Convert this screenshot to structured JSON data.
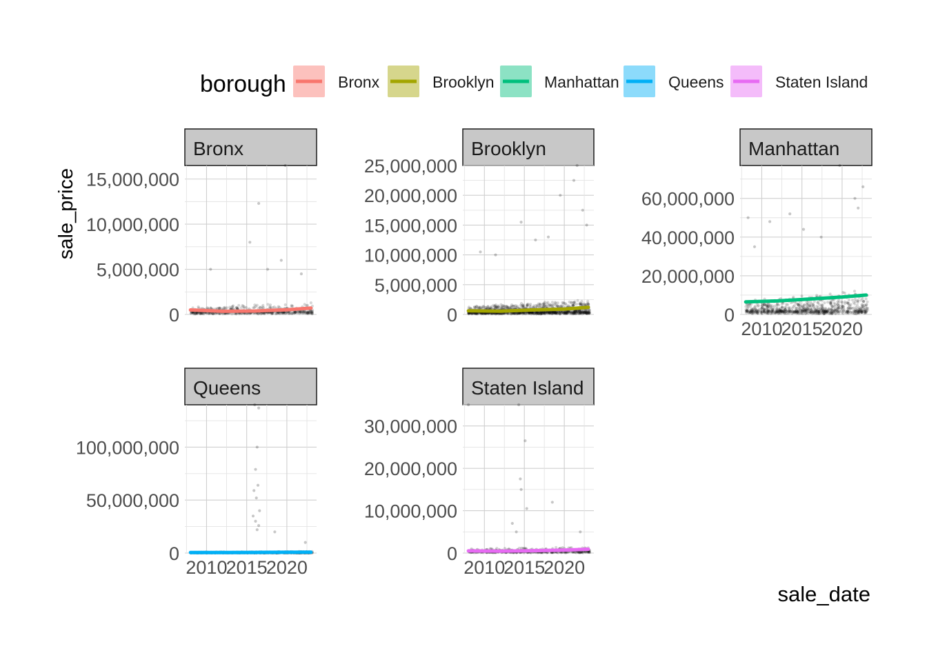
{
  "legend": {
    "title": "borough",
    "items": [
      {
        "label": "Bronx",
        "color": "#F8766D"
      },
      {
        "label": "Brooklyn",
        "color": "#A3A500"
      },
      {
        "label": "Manhattan",
        "color": "#00BF7D"
      },
      {
        "label": "Queens",
        "color": "#00B0F6"
      },
      {
        "label": "Staten Island",
        "color": "#E76BF3"
      }
    ]
  },
  "chart_data": {
    "type": "scatter",
    "xlabel": "sale_date",
    "ylabel": "sale_price",
    "x_ticks": [
      "2010",
      "2015",
      "2020"
    ],
    "x_tick_years": [
      2010,
      2015,
      2020
    ],
    "xlim": [
      2007.3,
      2023.7
    ],
    "grid": true,
    "legend_position": "top",
    "point_color": "#000000",
    "panels": [
      {
        "name": "Bronx",
        "color": "#F8766D",
        "ylim": [
          0,
          16500000
        ],
        "y_ticks": [
          0,
          5000000,
          10000000,
          15000000
        ],
        "y_tick_labels": [
          "0",
          "5,000,000",
          "10,000,000",
          "15,000,000"
        ],
        "smooth_x": [
          2008,
          2012,
          2016,
          2020,
          2023
        ],
        "smooth_y": [
          500000,
          350000,
          380000,
          520000,
          700000
        ],
        "outliers": [
          [
            2019.8,
            17000000
          ],
          [
            2016.5,
            12300000
          ],
          [
            2015.4,
            8000000
          ],
          [
            2017.6,
            5000000
          ],
          [
            2010.5,
            5000000
          ],
          [
            2019.3,
            6000000
          ],
          [
            2021.8,
            4500000
          ]
        ],
        "cloud": {
          "base": 150000,
          "scale": 900000,
          "count": 550
        }
      },
      {
        "name": "Brooklyn",
        "color": "#A3A500",
        "ylim": [
          0,
          25000000
        ],
        "y_ticks": [
          0,
          5000000,
          10000000,
          15000000,
          20000000,
          25000000
        ],
        "y_tick_labels": [
          "0",
          "5,000,000",
          "10,000,000",
          "15,000,000",
          "20,000,000",
          "25,000,000"
        ],
        "smooth_x": [
          2008,
          2012,
          2016,
          2020,
          2023
        ],
        "smooth_y": [
          600000,
          550000,
          750000,
          900000,
          1200000
        ],
        "outliers": [
          [
            2021.6,
            26000000
          ],
          [
            2021.2,
            22500000
          ],
          [
            2019.5,
            20000000
          ],
          [
            2022.3,
            17500000
          ],
          [
            2014.6,
            15500000
          ],
          [
            2018.0,
            13000000
          ],
          [
            2016.4,
            12500000
          ],
          [
            2022.8,
            15000000
          ],
          [
            2011.4,
            10000000
          ],
          [
            2009.5,
            10500000
          ]
        ],
        "cloud": {
          "base": 200000,
          "scale": 1800000,
          "count": 1100
        }
      },
      {
        "name": "Manhattan",
        "color": "#00BF7D",
        "ylim": [
          0,
          77000000
        ],
        "y_ticks": [
          0,
          20000000,
          40000000,
          60000000
        ],
        "y_tick_labels": [
          "0",
          "20,000,000",
          "40,000,000",
          "60,000,000"
        ],
        "smooth_x": [
          2008,
          2012,
          2016,
          2020,
          2023
        ],
        "smooth_y": [
          6500000,
          7000000,
          8000000,
          9000000,
          10000000
        ],
        "outliers": [
          [
            2019.7,
            78000000
          ],
          [
            2022.6,
            66000000
          ],
          [
            2021.6,
            60000000
          ],
          [
            2022.0,
            55000000
          ],
          [
            2013.5,
            52000000
          ],
          [
            2008.3,
            50000000
          ],
          [
            2011.0,
            48000000
          ],
          [
            2015.2,
            44000000
          ],
          [
            2017.4,
            40000000
          ],
          [
            2009.1,
            35000000
          ]
        ],
        "cloud": {
          "base": 1000000,
          "scale": 9000000,
          "count": 750
        }
      },
      {
        "name": "Queens",
        "color": "#00B0F6",
        "ylim": [
          0,
          140000000
        ],
        "y_ticks": [
          0,
          50000000,
          100000000
        ],
        "y_tick_labels": [
          "0",
          "50,000,000",
          "100,000,000"
        ],
        "smooth_x": [
          2008,
          2012,
          2016,
          2020,
          2023
        ],
        "smooth_y": [
          500000,
          500000,
          600000,
          700000,
          800000
        ],
        "outliers": [
          [
            2016.0,
            140000000
          ],
          [
            2016.5,
            137000000
          ],
          [
            2016.3,
            100000000
          ],
          [
            2016.1,
            79000000
          ],
          [
            2016.4,
            64000000
          ],
          [
            2015.9,
            59000000
          ],
          [
            2016.2,
            52000000
          ],
          [
            2016.6,
            40000000
          ],
          [
            2015.8,
            35000000
          ],
          [
            2016.1,
            30000000
          ],
          [
            2016.5,
            26000000
          ],
          [
            2016.3,
            22000000
          ],
          [
            2018.5,
            20000000
          ],
          [
            2022.3,
            10000000
          ]
        ],
        "cloud": {
          "base": 100000,
          "scale": 1200000,
          "count": 650
        }
      },
      {
        "name": "Staten Island",
        "color": "#E76BF3",
        "ylim": [
          0,
          35000000
        ],
        "y_ticks": [
          0,
          10000000,
          20000000,
          30000000
        ],
        "y_tick_labels": [
          "0",
          "10,000,000",
          "20,000,000",
          "30,000,000"
        ],
        "smooth_x": [
          2008,
          2012,
          2016,
          2020,
          2023
        ],
        "smooth_y": [
          500000,
          450000,
          550000,
          700000,
          900000
        ],
        "outliers": [
          [
            2008.0,
            35500000
          ],
          [
            2014.3,
            35000000
          ],
          [
            2015.1,
            26500000
          ],
          [
            2014.5,
            17500000
          ],
          [
            2014.6,
            15000000
          ],
          [
            2015.3,
            10500000
          ],
          [
            2018.5,
            12000000
          ],
          [
            2013.5,
            7000000
          ],
          [
            2014.0,
            5000000
          ],
          [
            2022.0,
            5000000
          ]
        ],
        "cloud": {
          "base": 200000,
          "scale": 1000000,
          "count": 520
        }
      }
    ]
  }
}
